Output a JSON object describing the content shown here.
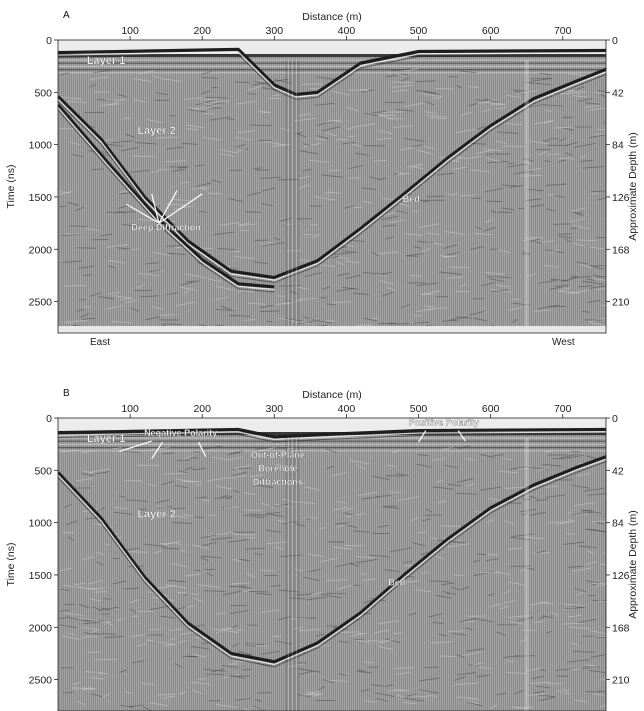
{
  "chart_data": [
    {
      "type": "image",
      "panel_label": "A",
      "xlabel": "Distance (m)",
      "ylabel": "Time (ns)",
      "y2label": "Approximate Depth (m)",
      "xlim": [
        0,
        760
      ],
      "ylim": [
        0,
        2800
      ],
      "x_ticks": [
        100,
        200,
        300,
        400,
        500,
        600,
        700
      ],
      "y_ticks": [
        0,
        500,
        1000,
        1500,
        2000,
        2500
      ],
      "y2_ticks": [
        0,
        42,
        84,
        126,
        168,
        210
      ],
      "left_side_label": "East",
      "right_side_label": "West",
      "annotations": [
        {
          "text": "Layer 1",
          "x": 40,
          "y": 230,
          "size": "large"
        },
        {
          "text": "Layer 2",
          "x": 110,
          "y": 900,
          "size": "large"
        },
        {
          "text": "Deep Diffraction",
          "x": 150,
          "y": 1820,
          "size": "small"
        },
        {
          "text": "Bed",
          "x": 490,
          "y": 1550,
          "size": "small"
        }
      ],
      "reflectors": [
        {
          "name": "bed-reflector",
          "points": [
            [
              0,
              540
            ],
            [
              60,
              950
            ],
            [
              120,
              1500
            ],
            [
              180,
              1920
            ],
            [
              240,
              2210
            ],
            [
              300,
              2270
            ],
            [
              360,
              2110
            ],
            [
              420,
              1800
            ],
            [
              480,
              1470
            ],
            [
              540,
              1130
            ],
            [
              600,
              820
            ],
            [
              660,
              560
            ],
            [
              720,
              390
            ],
            [
              760,
              280
            ]
          ]
        },
        {
          "name": "secondary-reflector",
          "points": [
            [
              0,
              620
            ],
            [
              70,
              1180
            ],
            [
              140,
              1720
            ],
            [
              200,
              2100
            ],
            [
              250,
              2330
            ],
            [
              300,
              2360
            ]
          ]
        },
        {
          "name": "layer-boundary",
          "points": [
            [
              0,
              120
            ],
            [
              250,
              90
            ],
            [
              300,
              430
            ],
            [
              330,
              520
            ],
            [
              360,
              500
            ],
            [
              420,
              220
            ],
            [
              500,
              110
            ],
            [
              760,
              100
            ]
          ]
        }
      ],
      "diffraction_arrow_origin": [
        140,
        1750
      ]
    },
    {
      "type": "image",
      "panel_label": "B",
      "xlabel": "Distance (m)",
      "ylabel": "Time (ns)",
      "y2label": "Approximate Depth (m)",
      "xlim": [
        0,
        760
      ],
      "ylim": [
        0,
        2800
      ],
      "x_ticks": [
        100,
        200,
        300,
        400,
        500,
        600,
        700
      ],
      "y_ticks": [
        0,
        500,
        1000,
        1500,
        2000,
        2500
      ],
      "y2_ticks": [
        0,
        42,
        84,
        126,
        168,
        210
      ],
      "annotations": [
        {
          "text": "Layer 1",
          "x": 40,
          "y": 230,
          "size": "large"
        },
        {
          "text": "Negative Polarity",
          "x": 170,
          "y": 170,
          "size": "small"
        },
        {
          "text": "Positive Polarity",
          "x": 535,
          "y": 70,
          "size": "small"
        },
        {
          "text": "Out-of-Plane",
          "x": 305,
          "y": 380,
          "size": "small"
        },
        {
          "text": "Borehole",
          "x": 305,
          "y": 510,
          "size": "small"
        },
        {
          "text": "Diffractions",
          "x": 305,
          "y": 640,
          "size": "small"
        },
        {
          "text": "Layer 2",
          "x": 110,
          "y": 950,
          "size": "large"
        },
        {
          "text": "Bed",
          "x": 470,
          "y": 1600,
          "size": "small"
        }
      ],
      "reflectors": [
        {
          "name": "bed-reflector",
          "points": [
            [
              0,
              520
            ],
            [
              60,
              960
            ],
            [
              120,
              1520
            ],
            [
              180,
              1960
            ],
            [
              240,
              2250
            ],
            [
              300,
              2330
            ],
            [
              360,
              2150
            ],
            [
              420,
              1860
            ],
            [
              480,
              1500
            ],
            [
              540,
              1160
            ],
            [
              600,
              860
            ],
            [
              660,
              640
            ],
            [
              720,
              470
            ],
            [
              760,
              370
            ]
          ]
        },
        {
          "name": "layer-boundary",
          "points": [
            [
              0,
              140
            ],
            [
              250,
              110
            ],
            [
              300,
              180
            ],
            [
              360,
              160
            ],
            [
              500,
              120
            ],
            [
              760,
              110
            ]
          ]
        }
      ]
    }
  ]
}
